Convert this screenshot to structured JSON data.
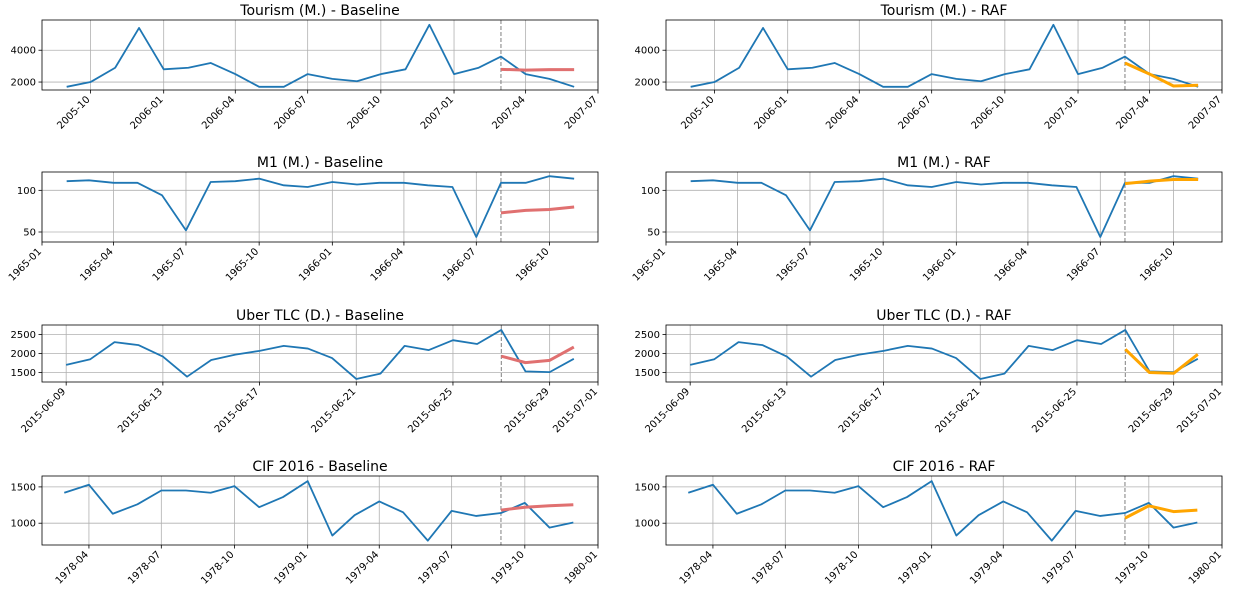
{
  "chart_data": [
    {
      "type": "line",
      "title": "Tourism (M.) - Baseline",
      "x": [
        "2005-09",
        "2005-10",
        "2005-11",
        "2005-12",
        "2006-01",
        "2006-02",
        "2006-03",
        "2006-04",
        "2006-05",
        "2006-06",
        "2006-07",
        "2006-08",
        "2006-09",
        "2006-10",
        "2006-11",
        "2006-12",
        "2007-01",
        "2007-02",
        "2007-03",
        "2007-04",
        "2007-05",
        "2007-06"
      ],
      "series": [
        {
          "color": "#1f77b4",
          "values": [
            1700,
            2000,
            2900,
            5400,
            2800,
            2900,
            3200,
            2500,
            1700,
            1700,
            2500,
            2200,
            2050,
            2500,
            2800,
            5600,
            2500,
            2900,
            3600,
            2500,
            2200,
            1700
          ]
        },
        {
          "color": "#e07070",
          "x": [
            "2007-03",
            "2007-04",
            "2007-05",
            "2007-06"
          ],
          "values": [
            2800,
            2750,
            2780,
            2780
          ]
        }
      ],
      "vline": "2007-03",
      "xlim": [
        "2005-08",
        "2007-07"
      ],
      "xticks": [
        "2005-10",
        "2006-01",
        "2006-04",
        "2006-07",
        "2006-10",
        "2007-01",
        "2007-04",
        "2007-07"
      ],
      "ylim": [
        1500,
        5900
      ],
      "yticks": [
        2000,
        4000
      ],
      "grid": true
    },
    {
      "type": "line",
      "title": "Tourism (M.) - RAF",
      "x": [
        "2005-09",
        "2005-10",
        "2005-11",
        "2005-12",
        "2006-01",
        "2006-02",
        "2006-03",
        "2006-04",
        "2006-05",
        "2006-06",
        "2006-07",
        "2006-08",
        "2006-09",
        "2006-10",
        "2006-11",
        "2006-12",
        "2007-01",
        "2007-02",
        "2007-03",
        "2007-04",
        "2007-05",
        "2007-06"
      ],
      "series": [
        {
          "color": "#1f77b4",
          "values": [
            1700,
            2000,
            2900,
            5400,
            2800,
            2900,
            3200,
            2500,
            1700,
            1700,
            2500,
            2200,
            2050,
            2500,
            2800,
            5600,
            2500,
            2900,
            3600,
            2500,
            2200,
            1700
          ]
        },
        {
          "color": "#ffa500",
          "x": [
            "2007-03",
            "2007-04",
            "2007-05",
            "2007-06"
          ],
          "values": [
            3200,
            2500,
            1750,
            1800
          ]
        }
      ],
      "vline": "2007-03",
      "xlim": [
        "2005-08",
        "2007-07"
      ],
      "xticks": [
        "2005-10",
        "2006-01",
        "2006-04",
        "2006-07",
        "2006-10",
        "2007-01",
        "2007-04",
        "2007-07"
      ],
      "ylim": [
        1500,
        5900
      ],
      "yticks": [
        2000,
        4000
      ],
      "grid": true
    },
    {
      "type": "line",
      "title": "M1 (M.) - Baseline",
      "x": [
        "1965-02",
        "1965-03",
        "1965-04",
        "1965-05",
        "1965-06",
        "1965-07",
        "1965-08",
        "1965-09",
        "1965-10",
        "1965-11",
        "1965-12",
        "1966-01",
        "1966-02",
        "1966-03",
        "1966-04",
        "1966-05",
        "1966-06",
        "1966-07",
        "1966-08",
        "1966-09",
        "1966-10",
        "1966-11"
      ],
      "series": [
        {
          "color": "#1f77b4",
          "values": [
            111,
            112,
            109,
            109,
            94,
            52,
            110,
            111,
            114,
            106,
            104,
            110,
            107,
            109,
            109,
            106,
            104,
            44,
            109,
            109,
            117,
            114
          ]
        },
        {
          "color": "#e07070",
          "x": [
            "1966-08",
            "1966-09",
            "1966-10",
            "1966-11"
          ],
          "values": [
            73,
            76,
            77,
            80
          ]
        }
      ],
      "vline": "1966-08",
      "xlim": [
        "1965-01",
        "1966-12"
      ],
      "xticks": [
        "1965-01",
        "1965-04",
        "1965-07",
        "1965-10",
        "1966-01",
        "1966-04",
        "1966-07",
        "1966-10"
      ],
      "ylim": [
        38,
        122
      ],
      "yticks": [
        50,
        100
      ],
      "grid": true
    },
    {
      "type": "line",
      "title": "M1 (M.) - RAF",
      "x": [
        "1965-02",
        "1965-03",
        "1965-04",
        "1965-05",
        "1965-06",
        "1965-07",
        "1965-08",
        "1965-09",
        "1965-10",
        "1965-11",
        "1965-12",
        "1966-01",
        "1966-02",
        "1966-03",
        "1966-04",
        "1966-05",
        "1966-06",
        "1966-07",
        "1966-08",
        "1966-09",
        "1966-10",
        "1966-11"
      ],
      "series": [
        {
          "color": "#1f77b4",
          "values": [
            111,
            112,
            109,
            109,
            94,
            52,
            110,
            111,
            114,
            106,
            104,
            110,
            107,
            109,
            109,
            106,
            104,
            44,
            109,
            109,
            117,
            114
          ]
        },
        {
          "color": "#ffa500",
          "x": [
            "1966-08",
            "1966-09",
            "1966-10",
            "1966-11"
          ],
          "values": [
            108,
            111,
            113,
            113
          ]
        }
      ],
      "vline": "1966-08",
      "xlim": [
        "1965-01",
        "1966-12"
      ],
      "xticks": [
        "1965-01",
        "1965-04",
        "1965-07",
        "1965-10",
        "1966-01",
        "1966-04",
        "1966-07",
        "1966-10"
      ],
      "ylim": [
        38,
        122
      ],
      "yticks": [
        50,
        100
      ],
      "grid": true
    },
    {
      "type": "line",
      "title": "Uber TLC (D.) - Baseline",
      "x": [
        "2015-06-09",
        "2015-06-10",
        "2015-06-11",
        "2015-06-12",
        "2015-06-13",
        "2015-06-14",
        "2015-06-15",
        "2015-06-16",
        "2015-06-17",
        "2015-06-18",
        "2015-06-19",
        "2015-06-20",
        "2015-06-21",
        "2015-06-22",
        "2015-06-23",
        "2015-06-24",
        "2015-06-25",
        "2015-06-26",
        "2015-06-27",
        "2015-06-28",
        "2015-06-29",
        "2015-06-30"
      ],
      "series": [
        {
          "color": "#1f77b4",
          "values": [
            1700,
            1850,
            2300,
            2220,
            1920,
            1390,
            1830,
            1970,
            2070,
            2200,
            2130,
            1880,
            1330,
            1470,
            2200,
            2090,
            2350,
            2250,
            2620,
            1530,
            1510,
            1860
          ]
        },
        {
          "color": "#e07070",
          "x": [
            "2015-06-27",
            "2015-06-28",
            "2015-06-29",
            "2015-06-30"
          ],
          "values": [
            1930,
            1760,
            1820,
            2170
          ]
        }
      ],
      "vline": "2015-06-27",
      "xlim": [
        "2015-06-08",
        "2015-07-01"
      ],
      "xticks": [
        "2015-06-09",
        "2015-06-13",
        "2015-06-17",
        "2015-06-21",
        "2015-06-25",
        "2015-06-29",
        "2015-07-01"
      ],
      "ylim": [
        1250,
        2750
      ],
      "yticks": [
        1500,
        2000,
        2500
      ],
      "grid": true
    },
    {
      "type": "line",
      "title": "Uber TLC (D.) - RAF",
      "x": [
        "2015-06-09",
        "2015-06-10",
        "2015-06-11",
        "2015-06-12",
        "2015-06-13",
        "2015-06-14",
        "2015-06-15",
        "2015-06-16",
        "2015-06-17",
        "2015-06-18",
        "2015-06-19",
        "2015-06-20",
        "2015-06-21",
        "2015-06-22",
        "2015-06-23",
        "2015-06-24",
        "2015-06-25",
        "2015-06-26",
        "2015-06-27",
        "2015-06-28",
        "2015-06-29",
        "2015-06-30"
      ],
      "series": [
        {
          "color": "#1f77b4",
          "values": [
            1700,
            1850,
            2300,
            2220,
            1920,
            1390,
            1830,
            1970,
            2070,
            2200,
            2130,
            1880,
            1330,
            1470,
            2200,
            2090,
            2350,
            2250,
            2620,
            1530,
            1510,
            1860
          ]
        },
        {
          "color": "#ffa500",
          "x": [
            "2015-06-27",
            "2015-06-28",
            "2015-06-29",
            "2015-06-30"
          ],
          "values": [
            2110,
            1500,
            1480,
            1980
          ]
        }
      ],
      "vline": "2015-06-27",
      "xlim": [
        "2015-06-08",
        "2015-07-01"
      ],
      "xticks": [
        "2015-06-09",
        "2015-06-13",
        "2015-06-17",
        "2015-06-21",
        "2015-06-25",
        "2015-06-29",
        "2015-07-01"
      ],
      "ylim": [
        1250,
        2750
      ],
      "yticks": [
        1500,
        2000,
        2500
      ],
      "grid": true
    },
    {
      "type": "line",
      "title": "CIF 2016 - Baseline",
      "x": [
        "1978-03",
        "1978-04",
        "1978-05",
        "1978-06",
        "1978-07",
        "1978-08",
        "1978-09",
        "1978-10",
        "1978-11",
        "1978-12",
        "1979-01",
        "1979-02",
        "1979-03",
        "1979-04",
        "1979-05",
        "1979-06",
        "1979-07",
        "1979-08",
        "1979-09",
        "1979-10",
        "1979-11",
        "1979-12"
      ],
      "series": [
        {
          "color": "#1f77b4",
          "values": [
            1420,
            1530,
            1130,
            1260,
            1450,
            1450,
            1420,
            1510,
            1220,
            1360,
            1580,
            830,
            1110,
            1300,
            1150,
            760,
            1170,
            1100,
            1140,
            1280,
            940,
            1010
          ]
        },
        {
          "color": "#e07070",
          "x": [
            "1979-09",
            "1979-10",
            "1979-11",
            "1979-12"
          ],
          "values": [
            1180,
            1220,
            1240,
            1255
          ]
        }
      ],
      "vline": "1979-09",
      "xlim": [
        "1978-02",
        "1980-01"
      ],
      "xticks": [
        "1978-04",
        "1978-07",
        "1978-10",
        "1979-01",
        "1979-04",
        "1979-07",
        "1979-10",
        "1980-01"
      ],
      "ylim": [
        700,
        1650
      ],
      "yticks": [
        1000,
        1500
      ],
      "grid": true
    },
    {
      "type": "line",
      "title": "CIF 2016 - RAF",
      "x": [
        "1978-03",
        "1978-04",
        "1978-05",
        "1978-06",
        "1978-07",
        "1978-08",
        "1978-09",
        "1978-10",
        "1978-11",
        "1978-12",
        "1979-01",
        "1979-02",
        "1979-03",
        "1979-04",
        "1979-05",
        "1979-06",
        "1979-07",
        "1979-08",
        "1979-09",
        "1979-10",
        "1979-11",
        "1979-12"
      ],
      "series": [
        {
          "color": "#1f77b4",
          "values": [
            1420,
            1530,
            1130,
            1260,
            1450,
            1450,
            1420,
            1510,
            1220,
            1360,
            1580,
            830,
            1110,
            1300,
            1150,
            760,
            1170,
            1100,
            1140,
            1280,
            940,
            1010
          ]
        },
        {
          "color": "#ffa500",
          "x": [
            "1979-09",
            "1979-10",
            "1979-11",
            "1979-12"
          ],
          "values": [
            1070,
            1240,
            1160,
            1180
          ]
        }
      ],
      "vline": "1979-09",
      "xlim": [
        "1978-02",
        "1980-01"
      ],
      "xticks": [
        "1978-04",
        "1978-07",
        "1978-10",
        "1979-01",
        "1979-04",
        "1979-07",
        "1979-10",
        "1980-01"
      ],
      "ylim": [
        700,
        1650
      ],
      "yticks": [
        1000,
        1500
      ],
      "grid": true
    }
  ]
}
